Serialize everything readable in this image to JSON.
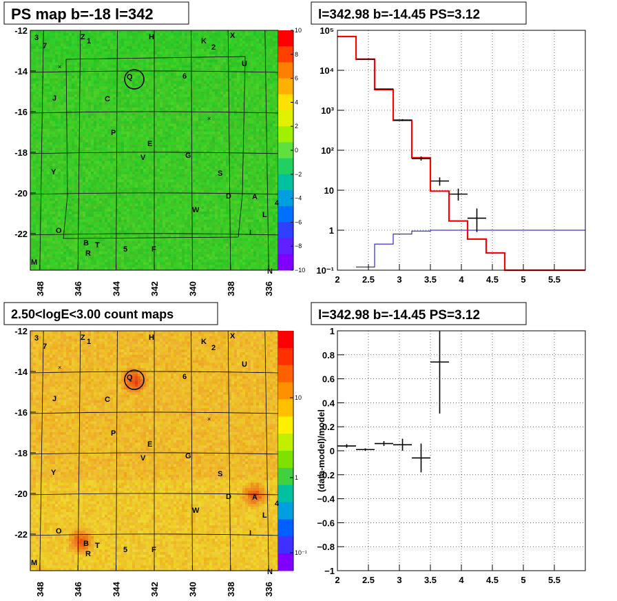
{
  "colors": {
    "spectrum_model": "#ff0000",
    "background_model": "#0000cc",
    "data": "#000000",
    "ps_map_base": "#3fd23a",
    "count_map_base": "#f0c23a"
  },
  "panels": {
    "ps_map": {
      "title": "PS map b=-18 l=342",
      "x_ticks": [
        "348",
        "346",
        "344",
        "342",
        "340",
        "338",
        "336"
      ],
      "y_ticks": [
        "-12",
        "-14",
        "-16",
        "-18",
        "-20",
        "-22"
      ],
      "colorbar_ticks": [
        "10",
        "8",
        "6",
        "4",
        "2",
        "0",
        "−2",
        "−4",
        "−6",
        "−8",
        "−10"
      ],
      "xlim": [
        348.5,
        335.5
      ],
      "ylim": [
        -23.8,
        -12
      ]
    },
    "count_map": {
      "title": "2.50<logE<3.00 count maps",
      "x_ticks": [
        "348",
        "346",
        "344",
        "342",
        "340",
        "338",
        "336"
      ],
      "y_ticks": [
        "-12",
        "-14",
        "-16",
        "-18",
        "-20",
        "-22"
      ],
      "colorbar_ticks": [
        "10",
        "1",
        "10⁻¹"
      ]
    },
    "spectrum": {
      "title": "l=342.98 b=-14.45 PS=3.12",
      "x_ticks": [
        "2",
        "2.5",
        "3",
        "3.5",
        "4",
        "4.5",
        "5",
        "5.5"
      ],
      "y_ticks": [
        "10⁵",
        "10⁴",
        "10³",
        "10²",
        "10",
        "1",
        "10⁻¹"
      ]
    },
    "residual": {
      "title": "l=342.98 b=-14.45 PS=3.12",
      "ylabel": "(data-model)/model",
      "x_ticks": [
        "2",
        "2.5",
        "3",
        "3.5",
        "4",
        "4.5",
        "5",
        "5.5"
      ],
      "y_ticks": [
        "1",
        "0.8",
        "0.6",
        "0.4",
        "0.2",
        "0",
        "−0.2",
        "−0.4",
        "−0.6",
        "−0.8",
        "−1"
      ]
    }
  },
  "source_labels": [
    "3",
    "7",
    "Z",
    "1",
    "H",
    "K",
    "2",
    "X",
    "U",
    "6",
    "Q",
    "J",
    "C",
    "P",
    "E",
    "V",
    "G",
    "Y",
    "S",
    "D",
    "A",
    "4",
    "L",
    "W",
    "O",
    "I",
    "B",
    "T",
    "R",
    "5",
    "F",
    "M",
    "N"
  ],
  "chart_data": [
    {
      "type": "heatmap",
      "title": "PS map b=-18 l=342",
      "xlabel": "",
      "ylabel": "",
      "xlim": [
        348.5,
        335.5
      ],
      "ylim": [
        -23.8,
        -12
      ],
      "zlim": [
        -10,
        10
      ],
      "x_ticks": [
        348,
        346,
        344,
        342,
        340,
        338,
        336
      ],
      "y_ticks": [
        -12,
        -14,
        -16,
        -18,
        -20,
        -22
      ]
    },
    {
      "type": "heatmap",
      "title": "2.50<logE<3.00 count maps",
      "xlabel": "",
      "ylabel": "",
      "xlim": [
        348.5,
        335.5
      ],
      "ylim": [
        -23.8,
        -12
      ],
      "z_scale": "log",
      "hotspots": [
        {
          "label": "A",
          "l": 336.8,
          "b": -20.0
        },
        {
          "label": "B",
          "l": 345.9,
          "b": -22.3
        },
        {
          "label": "Q",
          "l": 343.1,
          "b": -14.4
        }
      ]
    },
    {
      "type": "line",
      "title": "l=342.98 b=-14.45 PS=3.12",
      "xlabel": "",
      "ylabel": "",
      "xlim": [
        2,
        6
      ],
      "y_scale": "log",
      "ylim": [
        0.1,
        100000
      ],
      "series": [
        {
          "name": "",
          "style": "step",
          "edges": [
            2.0,
            2.3,
            2.6,
            2.9,
            3.2,
            3.5,
            3.8,
            4.1,
            4.4,
            4.7,
            6.0
          ],
          "values": [
            70000,
            19000,
            3300,
            560,
            65,
            9.5,
            1.7,
            0.6,
            0.27,
            0.1
          ]
        },
        {
          "name": "",
          "style": "step",
          "edges": [
            2.3,
            2.6,
            2.9,
            3.2,
            3.5,
            6.0
          ],
          "values": [
            0.12,
            0.45,
            0.8,
            0.95,
            1.0
          ]
        },
        {
          "name": "",
          "style": "errorbar",
          "points": [
            {
              "x": 2.45,
              "y": 19000,
              "xerr": 0.15,
              "ylo": 18500,
              "yhi": 19500
            },
            {
              "x": 2.75,
              "y": 3400,
              "xerr": 0.15,
              "ylo": 3300,
              "yhi": 3500
            },
            {
              "x": 3.05,
              "y": 570,
              "xerr": 0.15,
              "ylo": 540,
              "yhi": 600
            },
            {
              "x": 3.35,
              "y": 62,
              "xerr": 0.15,
              "ylo": 55,
              "yhi": 70
            },
            {
              "x": 3.65,
              "y": 17,
              "xerr": 0.15,
              "ylo": 13,
              "yhi": 21
            },
            {
              "x": 3.95,
              "y": 8,
              "xerr": 0.15,
              "ylo": 5.5,
              "yhi": 11
            },
            {
              "x": 4.25,
              "y": 2,
              "xerr": 0.15,
              "ylo": 0.9,
              "yhi": 3.5
            }
          ]
        }
      ]
    },
    {
      "type": "scatter",
      "title": "l=342.98 b=-14.45 PS=3.12",
      "xlabel": "",
      "ylabel": "(data-model)/model",
      "xlim": [
        2,
        6
      ],
      "ylim": [
        -1,
        1
      ],
      "series": [
        {
          "name": "",
          "style": "errorbar",
          "points": [
            {
              "x": 2.15,
              "y": 0.04,
              "xerr": 0.15,
              "ylo": 0.025,
              "yhi": 0.055
            },
            {
              "x": 2.45,
              "y": 0.01,
              "xerr": 0.15,
              "ylo": 0.0,
              "yhi": 0.02
            },
            {
              "x": 2.75,
              "y": 0.06,
              "xerr": 0.15,
              "ylo": 0.04,
              "yhi": 0.08
            },
            {
              "x": 3.05,
              "y": 0.05,
              "xerr": 0.15,
              "ylo": 0.0,
              "yhi": 0.1
            },
            {
              "x": 3.35,
              "y": -0.06,
              "xerr": 0.15,
              "ylo": -0.18,
              "yhi": 0.06
            },
            {
              "x": 3.65,
              "y": 0.74,
              "xerr": 0.15,
              "ylo": 0.31,
              "yhi": 1.0
            }
          ]
        }
      ]
    }
  ]
}
